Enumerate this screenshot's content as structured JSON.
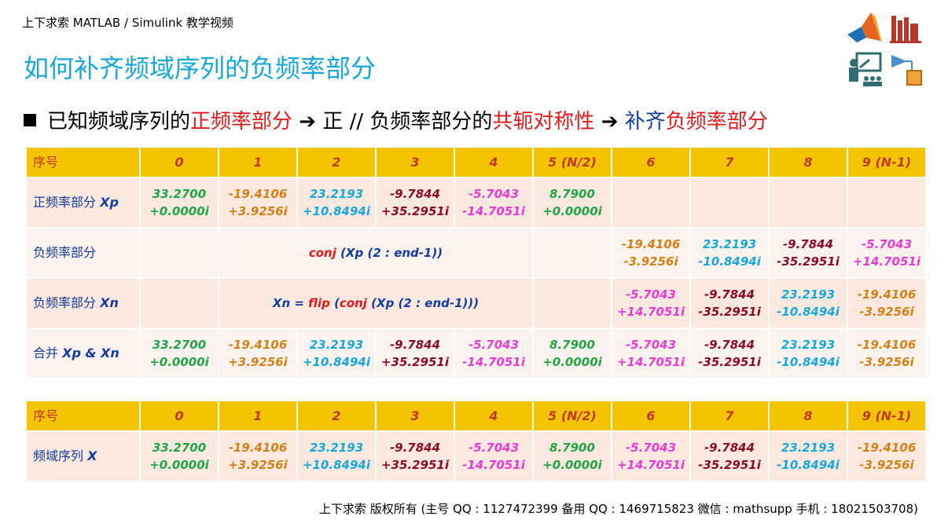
{
  "top_caption": "上下求索 MATLAB / Simulink 教学视频",
  "page_title": "如何补齐频域序列的负频率部分",
  "headline": {
    "part1": "已知频域序列的",
    "part2": "正频率部分",
    "arrow1": "➔",
    "part3": " 正 // 负频率部分的",
    "part4": "共轭对称性",
    "arrow2": "➔",
    "part5": "补齐",
    "part6": "负频率部分"
  },
  "table1": {
    "header_label": "序号",
    "header": [
      "0",
      "1",
      "2",
      "3",
      "4",
      "5 (N/2)",
      "6",
      "7",
      "8",
      "9 (N-1)"
    ],
    "row_xp_label": "正频率部分",
    "row_xp_var": "Xp",
    "xp": [
      [
        "33.2700",
        "+0.0000i"
      ],
      [
        "-19.4106",
        "+3.9256i"
      ],
      [
        "23.2193",
        "+10.8494i"
      ],
      [
        "-9.7844",
        "+35.2951i"
      ],
      [
        "-5.7043",
        "-14.7051i"
      ],
      [
        "8.7900",
        "+0.0000i"
      ]
    ],
    "row_neg_label": "负频率部分",
    "neg_formula": {
      "f1": "conj",
      "f2": " (Xp (2 : end-1))"
    },
    "neg": [
      [
        "-19.4106",
        "-3.9256i"
      ],
      [
        "23.2193",
        "-10.8494i"
      ],
      [
        "-9.7844",
        "-35.2951i"
      ],
      [
        "-5.7043",
        "+14.7051i"
      ]
    ],
    "row_xn_label": "负频率部分",
    "row_xn_var": "Xn",
    "xn_formula": {
      "a": "Xn = ",
      "f1": "flip",
      "b": " (",
      "f2": "conj",
      "c": " (Xp (2 : end-1)))"
    },
    "xn": [
      [
        "-5.7043",
        "+14.7051i"
      ],
      [
        "-9.7844",
        "-35.2951i"
      ],
      [
        "23.2193",
        "-10.8494i"
      ],
      [
        "-19.4106",
        "-3.9256i"
      ]
    ],
    "row_merge_label": "合并",
    "row_merge_var": "Xp & Xn"
  },
  "table2": {
    "header_label": "序号",
    "row_label": "频域序列",
    "row_var": "X"
  },
  "footer": "上下求索  版权所有  (主号 QQ : 1127472399   备用 QQ : 1469715823   微信 : mathsupp   手机 : 18021503708)",
  "colors": {
    "title": "#17a8d8",
    "header_bg": "#f5c400",
    "header_text": "#c0392b",
    "label_blue": "#123c9e",
    "green": "#1fa446",
    "orange": "#d48016",
    "cyan": "#17a8d8",
    "maroon": "#8b0a2a",
    "magenta": "#e83bd3",
    "red": "#e11b1b"
  },
  "icons": [
    "matlab-logo-icon",
    "library-books-icon",
    "presenter-icon",
    "simulink-block-icon"
  ]
}
